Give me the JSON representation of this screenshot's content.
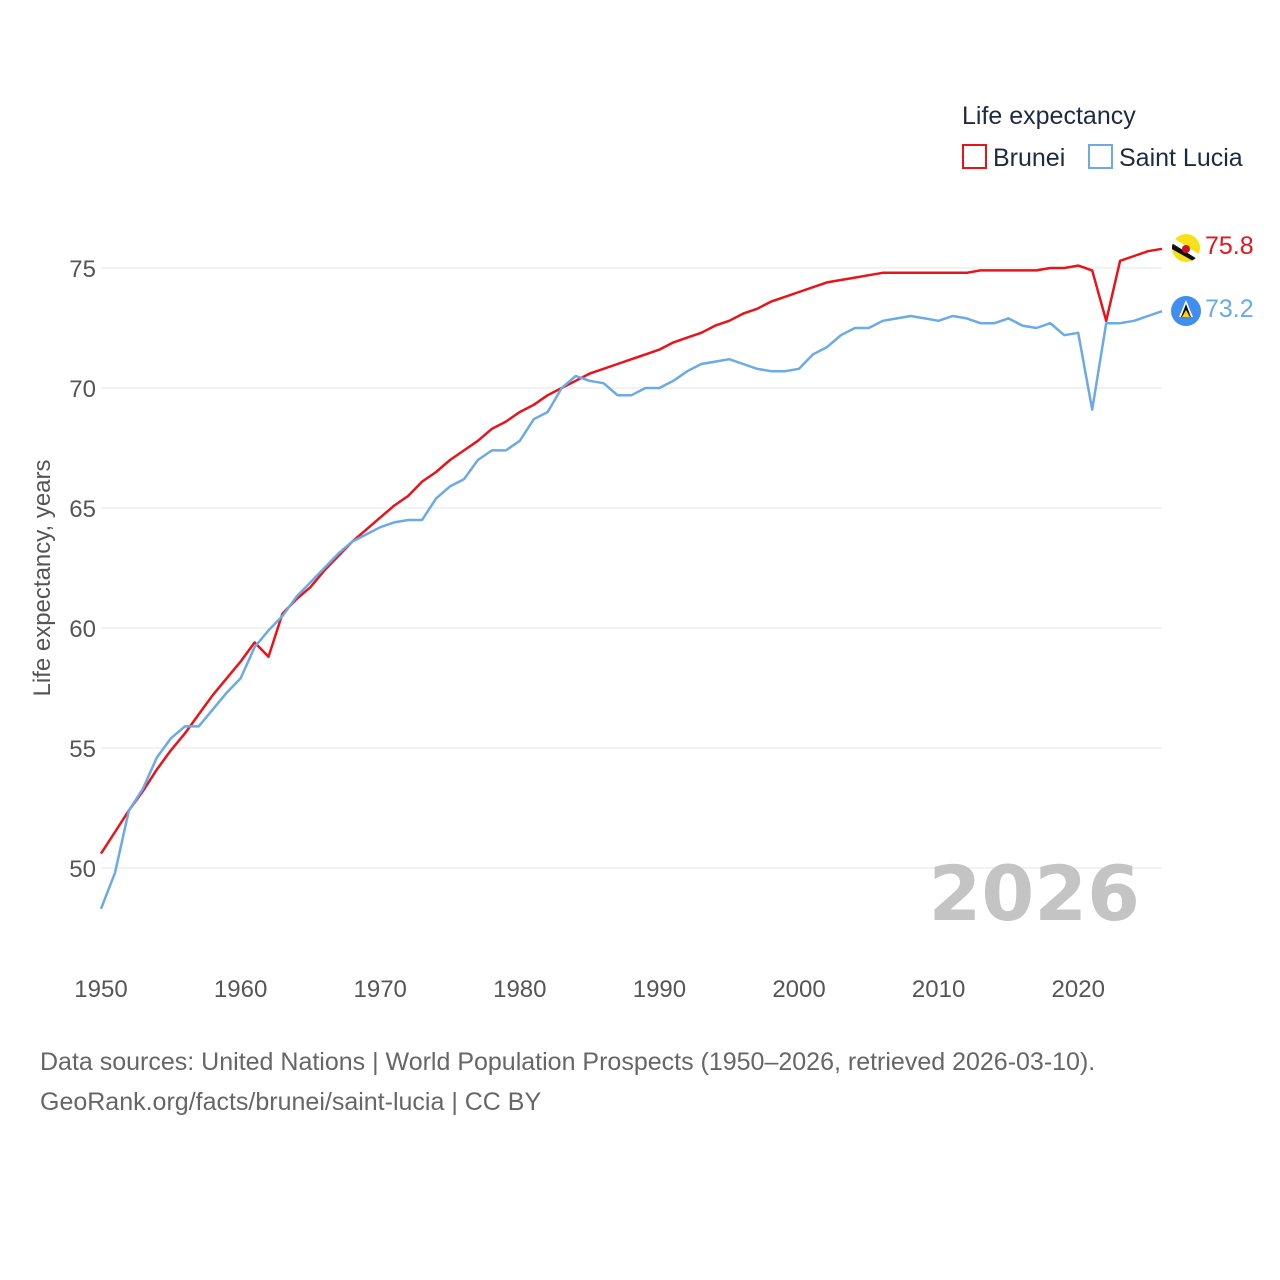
{
  "colors": {
    "brunei": "#e8141a",
    "saint_lucia": "#6aaae6",
    "grid": "#e6e6e6",
    "watermark": "#c4c4c4"
  },
  "legend": {
    "title": "Life expectancy",
    "items": [
      "Brunei",
      "Saint Lucia"
    ]
  },
  "end_labels": {
    "brunei": "75.8",
    "saint_lucia": "73.2",
    "brunei_flag_icon": "brunei-flag-icon",
    "saint_lucia_flag_icon": "saint-lucia-flag-icon"
  },
  "year_display": "2026",
  "source": {
    "line1": "Data sources: United Nations | World Population Prospects (1950–2026, retrieved 2026-03-10).",
    "line2": "GeoRank.org/facts/brunei/saint-lucia | CC BY"
  },
  "chart_data": {
    "type": "line",
    "title": "Life expectancy",
    "xlabel": "",
    "ylabel": "Life expectancy, years",
    "xlim": [
      1950,
      2026
    ],
    "ylim": [
      47.5,
      77.5
    ],
    "x_ticks": [
      1950,
      1960,
      1970,
      1980,
      1990,
      2000,
      2010,
      2020
    ],
    "y_ticks": [
      50,
      55,
      60,
      65,
      70,
      75
    ],
    "grid": true,
    "legend_position": "top-right",
    "x": [
      1950,
      1951,
      1952,
      1953,
      1954,
      1955,
      1956,
      1957,
      1958,
      1959,
      1960,
      1961,
      1962,
      1963,
      1964,
      1965,
      1966,
      1967,
      1968,
      1969,
      1970,
      1971,
      1972,
      1973,
      1974,
      1975,
      1976,
      1977,
      1978,
      1979,
      1980,
      1981,
      1982,
      1983,
      1984,
      1985,
      1986,
      1987,
      1988,
      1989,
      1990,
      1991,
      1992,
      1993,
      1994,
      1995,
      1996,
      1997,
      1998,
      1999,
      2000,
      2001,
      2002,
      2003,
      2004,
      2005,
      2006,
      2007,
      2008,
      2009,
      2010,
      2011,
      2012,
      2013,
      2014,
      2015,
      2016,
      2017,
      2018,
      2019,
      2020,
      2021,
      2022,
      2023,
      2024,
      2025,
      2026
    ],
    "series": [
      {
        "name": "Brunei",
        "values": [
          50.6,
          51.5,
          52.4,
          53.2,
          54.1,
          54.9,
          55.6,
          56.4,
          57.2,
          57.9,
          58.6,
          59.4,
          58.8,
          60.6,
          61.2,
          61.7,
          62.4,
          63.0,
          63.6,
          64.1,
          64.6,
          65.1,
          65.5,
          66.1,
          66.5,
          67.0,
          67.4,
          67.8,
          68.3,
          68.6,
          69.0,
          69.3,
          69.7,
          70.0,
          70.3,
          70.6,
          70.8,
          71.0,
          71.2,
          71.4,
          71.6,
          71.9,
          72.1,
          72.3,
          72.6,
          72.8,
          73.1,
          73.3,
          73.6,
          73.8,
          74.0,
          74.2,
          74.4,
          74.5,
          74.6,
          74.7,
          74.8,
          74.8,
          74.8,
          74.8,
          74.8,
          74.8,
          74.8,
          74.9,
          74.9,
          74.9,
          74.9,
          74.9,
          75.0,
          75.0,
          75.1,
          74.9,
          72.8,
          75.3,
          75.5,
          75.7,
          75.8
        ]
      },
      {
        "name": "Saint Lucia",
        "values": [
          48.3,
          49.8,
          52.4,
          53.3,
          54.6,
          55.4,
          55.9,
          55.9,
          56.6,
          57.3,
          57.9,
          59.2,
          59.9,
          60.5,
          61.3,
          61.9,
          62.5,
          63.1,
          63.6,
          63.9,
          64.2,
          64.4,
          64.5,
          64.5,
          65.4,
          65.9,
          66.2,
          67.0,
          67.4,
          67.4,
          67.8,
          68.7,
          69.0,
          70.0,
          70.5,
          70.3,
          70.2,
          69.7,
          69.7,
          70.0,
          70.0,
          70.3,
          70.7,
          71.0,
          71.1,
          71.2,
          71.0,
          70.8,
          70.7,
          70.7,
          70.8,
          71.4,
          71.7,
          72.2,
          72.5,
          72.5,
          72.8,
          72.9,
          73.0,
          72.9,
          72.8,
          73.0,
          72.9,
          72.7,
          72.7,
          72.9,
          72.6,
          72.5,
          72.7,
          72.2,
          72.3,
          69.1,
          72.7,
          72.7,
          72.8,
          73.0,
          73.2
        ]
      }
    ]
  }
}
